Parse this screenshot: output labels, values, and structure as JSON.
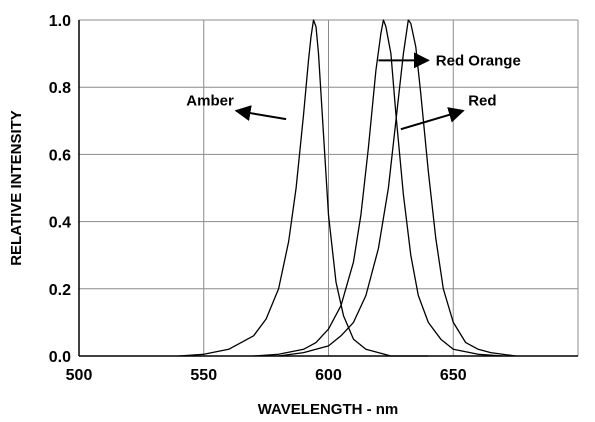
{
  "chart_data": {
    "type": "line",
    "title": "",
    "xlabel": "WAVELENGTH - nm",
    "ylabel": "RELATIVE INTENSITY",
    "xlim": [
      500,
      700
    ],
    "ylim": [
      0,
      1.0
    ],
    "x_ticks": [
      500,
      550,
      600,
      650
    ],
    "x_tick_labels": [
      "500",
      "550",
      "600",
      "650"
    ],
    "y_ticks": [
      0,
      0.2,
      0.4,
      0.6,
      0.8,
      1.0
    ],
    "y_tick_labels": [
      "0.0",
      "0.2",
      "0.4",
      "0.6",
      "0.8",
      "1.0"
    ],
    "grid": true,
    "legend": "none",
    "series": [
      {
        "name": "Amber",
        "x": [
          540,
          550,
          560,
          570,
          575,
          580,
          584,
          587,
          590,
          592,
          593,
          594,
          595,
          596,
          598,
          600,
          603,
          606,
          610,
          615,
          620,
          625,
          640
        ],
        "y": [
          0.0,
          0.005,
          0.02,
          0.06,
          0.11,
          0.2,
          0.34,
          0.5,
          0.72,
          0.88,
          0.95,
          1.0,
          0.98,
          0.9,
          0.66,
          0.42,
          0.22,
          0.12,
          0.05,
          0.02,
          0.01,
          0.0,
          0.0
        ]
      },
      {
        "name": "Red Orange",
        "x": [
          570,
          580,
          590,
          595,
          600,
          605,
          610,
          613,
          616,
          619,
          621,
          622,
          623,
          625,
          627,
          630,
          633,
          636,
          640,
          645,
          650,
          660,
          670
        ],
        "y": [
          0.0,
          0.005,
          0.02,
          0.04,
          0.08,
          0.15,
          0.28,
          0.42,
          0.62,
          0.85,
          0.96,
          1.0,
          0.98,
          0.9,
          0.72,
          0.48,
          0.3,
          0.18,
          0.1,
          0.05,
          0.02,
          0.005,
          0.0
        ]
      },
      {
        "name": "Red",
        "x": [
          580,
          590,
          600,
          605,
          610,
          615,
          620,
          624,
          627,
          630,
          632,
          633,
          635,
          637,
          640,
          643,
          646,
          650,
          655,
          660,
          665,
          675
        ],
        "y": [
          0.0,
          0.01,
          0.03,
          0.06,
          0.1,
          0.18,
          0.32,
          0.5,
          0.7,
          0.9,
          1.0,
          0.99,
          0.92,
          0.78,
          0.55,
          0.35,
          0.2,
          0.1,
          0.04,
          0.02,
          0.01,
          0.0
        ]
      }
    ],
    "annotations": [
      {
        "id": "amber",
        "text": "Amber",
        "text_x": 543,
        "text_y": 0.76,
        "arrow_from": [
          583,
          0.705
        ],
        "arrow_to": [
          563,
          0.73
        ]
      },
      {
        "id": "red-orange",
        "text": "Red Orange",
        "text_x": 643,
        "text_y": 0.88,
        "arrow_from": [
          620,
          0.88
        ],
        "arrow_to": [
          640,
          0.88
        ]
      },
      {
        "id": "red",
        "text": "Red",
        "text_x": 656,
        "text_y": 0.76,
        "arrow_from": [
          629,
          0.675
        ],
        "arrow_to": [
          654,
          0.73
        ]
      }
    ]
  }
}
